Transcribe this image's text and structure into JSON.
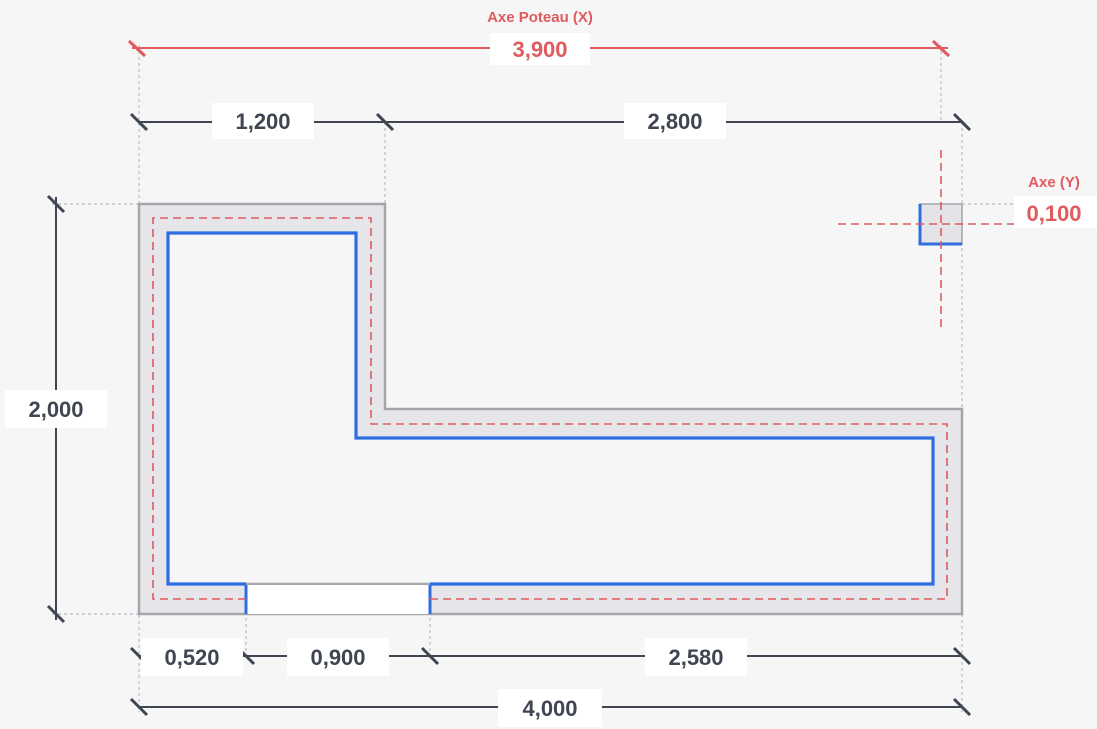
{
  "colors": {
    "background": "#f6f6f7",
    "dimension": "#3f4652",
    "axis": "#e05a5e",
    "wall_outline": "#2f6ee0",
    "wall_fill": "#e6e6ea",
    "wall_edge": "#a3a5ab",
    "guide": "#b9bcc2",
    "label_bg": "#ffffff"
  },
  "axis_x": {
    "title": "Axe Poteau (X)",
    "value": "3,900"
  },
  "axis_y": {
    "title": "Axe (Y)",
    "value": "0,100"
  },
  "dimensions": {
    "top_left": "1,200",
    "top_right": "2,800",
    "height": "2,000",
    "bottom_left": "0,520",
    "door": "0,900",
    "bottom_right": "2,580",
    "total": "4,000"
  }
}
